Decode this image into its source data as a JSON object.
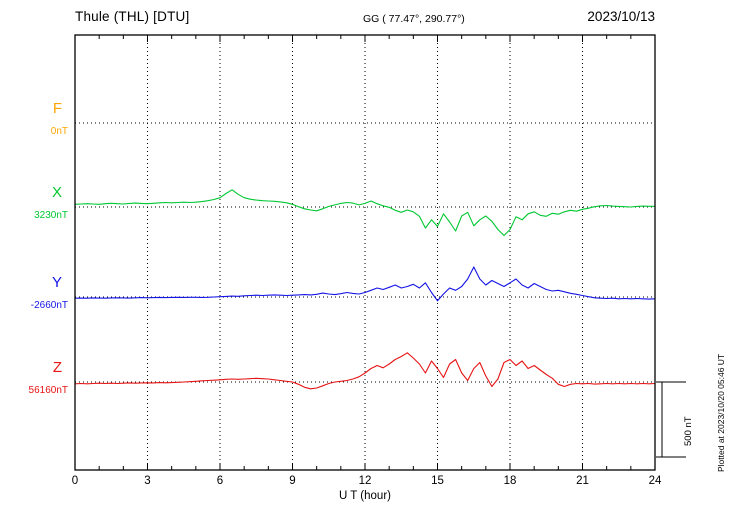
{
  "header": {
    "station": "Thule (THL)  [DTU]",
    "coords": "GG ( 77.47°, 290.77°)",
    "date": "2023/10/13"
  },
  "axis": {
    "xlabel": "U T (hour)"
  },
  "scale_bar": {
    "label": "500 nT",
    "nT": 500
  },
  "footer_right": "Plotted at 2023/10/20 05:46 UT",
  "chart_data": {
    "type": "line",
    "title": "Thule (THL) [DTU] magnetogram",
    "date": "2023/10/13",
    "xlabel": "U T (hour)",
    "x_range": [
      0,
      24
    ],
    "x_ticks": [
      0,
      3,
      6,
      9,
      12,
      15,
      18,
      21,
      24
    ],
    "y_unit": "nT",
    "scale_bar_nT": 500,
    "grid": "dotted vertical every 3h, dotted horizontal at each component baseline",
    "note": "series values are deviations in nT from each component baseline, sampled uniformly from 0 to 24 UT",
    "series": [
      {
        "name": "F",
        "label": "F",
        "baseline_label": "0nT",
        "baseline_nT": 0,
        "color": "#ffa500",
        "values": []
      },
      {
        "name": "X",
        "label": "X",
        "baseline_label": "3230nT",
        "baseline_nT": 3230,
        "color": "#00c832",
        "values": [
          18,
          20,
          22,
          20,
          18,
          22,
          25,
          22,
          20,
          24,
          26,
          24,
          22,
          25,
          28,
          30,
          28,
          30,
          32,
          30,
          32,
          36,
          42,
          50,
          62,
          90,
          115,
          85,
          62,
          52,
          46,
          42,
          40,
          38,
          34,
          28,
          18,
          2,
          -12,
          -20,
          -25,
          -12,
          4,
          14,
          24,
          30,
          26,
          14,
          24,
          40,
          22,
          8,
          -2,
          -22,
          -35,
          -20,
          -32,
          -62,
          -140,
          -85,
          -130,
          -45,
          -100,
          -160,
          -60,
          -35,
          -125,
          -85,
          -60,
          -95,
          -150,
          -190,
          -150,
          -65,
          -85,
          -45,
          -32,
          -55,
          -62,
          -42,
          -48,
          -32,
          -22,
          -28,
          -15,
          -8,
          2,
          8,
          10,
          6,
          4,
          2,
          0,
          4,
          6,
          5,
          5
        ]
      },
      {
        "name": "Y",
        "label": "Y",
        "baseline_label": "-2660nT",
        "baseline_nT": -2660,
        "color": "#1414e6",
        "values": [
          -8,
          -7,
          -8,
          -6,
          -7,
          -8,
          -6,
          -5,
          -6,
          -7,
          -5,
          -4,
          -5,
          -4,
          -3,
          -4,
          -3,
          -2,
          -3,
          -2,
          -2,
          -3,
          -2,
          0,
          2,
          4,
          6,
          5,
          8,
          10,
          12,
          10,
          12,
          14,
          12,
          10,
          12,
          14,
          16,
          14,
          18,
          26,
          20,
          16,
          22,
          30,
          24,
          20,
          30,
          45,
          60,
          50,
          65,
          80,
          60,
          70,
          85,
          60,
          95,
          30,
          -25,
          20,
          60,
          45,
          70,
          120,
          200,
          120,
          80,
          110,
          90,
          70,
          95,
          120,
          80,
          60,
          90,
          70,
          50,
          40,
          45,
          35,
          25,
          18,
          10,
          2,
          -5,
          -8,
          -10,
          -8,
          -12,
          -10,
          -12,
          -10,
          -12,
          -14,
          -12
        ]
      },
      {
        "name": "Z",
        "label": "Z",
        "baseline_label": "56160nT",
        "baseline_nT": 56160,
        "color": "#e61414",
        "values": [
          -12,
          -10,
          -12,
          -10,
          -8,
          -10,
          -8,
          -10,
          -8,
          -6,
          -8,
          -6,
          -5,
          -6,
          -4,
          -5,
          -4,
          -2,
          0,
          2,
          5,
          8,
          10,
          12,
          15,
          18,
          20,
          18,
          20,
          22,
          25,
          22,
          20,
          15,
          10,
          5,
          0,
          -15,
          -35,
          -45,
          -40,
          -25,
          -10,
          0,
          5,
          10,
          20,
          35,
          60,
          90,
          110,
          95,
          120,
          150,
          170,
          195,
          160,
          120,
          60,
          140,
          90,
          30,
          120,
          150,
          60,
          10,
          90,
          130,
          40,
          -30,
          20,
          130,
          150,
          110,
          140,
          90,
          110,
          80,
          50,
          25,
          -15,
          -30,
          -15,
          -10,
          -12,
          -10,
          -14,
          -12,
          -10,
          -12,
          -10,
          -12,
          -10,
          -12,
          -10,
          -12,
          -10
        ]
      }
    ]
  }
}
